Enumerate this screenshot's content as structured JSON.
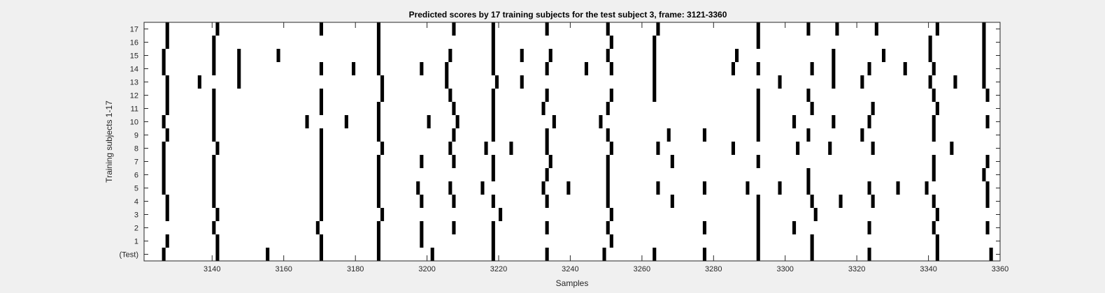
{
  "chart_data": {
    "type": "raster",
    "title": "Predicted scores by 17 training subjects for the test subject 3, frame: 3121-3360",
    "xlabel": "Samples",
    "ylabel": "Training subjects 1-17",
    "xlim": [
      3121,
      3360
    ],
    "xticks": [
      3140,
      3160,
      3180,
      3200,
      3220,
      3240,
      3260,
      3280,
      3300,
      3320,
      3340,
      3360
    ],
    "bar_width": 1,
    "grid": false,
    "series": [
      {
        "label": "(Test)",
        "events": [
          3126,
          3141,
          3155,
          3170,
          3186,
          3201,
          3218,
          3233,
          3249,
          3263,
          3277,
          3292,
          3307,
          3323,
          3342,
          3357
        ]
      },
      {
        "label": "1",
        "events": [
          3127,
          3141,
          3170,
          3186,
          3198,
          3218,
          3251,
          3292,
          3307,
          3342
        ]
      },
      {
        "label": "2",
        "events": [
          3140,
          3169,
          3186,
          3198,
          3207,
          3218,
          3233,
          3250,
          3277,
          3292,
          3302,
          3323,
          3341,
          3356
        ]
      },
      {
        "label": "3",
        "events": [
          3127,
          3141,
          3170,
          3187,
          3220,
          3251,
          3292,
          3308,
          3342
        ]
      },
      {
        "label": "4",
        "events": [
          3127,
          3140,
          3170,
          3186,
          3198,
          3207,
          3218,
          3233,
          3250,
          3268,
          3292,
          3307,
          3315,
          3324,
          3341,
          3356
        ]
      },
      {
        "label": "5",
        "events": [
          3126,
          3140,
          3170,
          3186,
          3197,
          3206,
          3215,
          3232,
          3239,
          3250,
          3264,
          3277,
          3289,
          3298,
          3306,
          3323,
          3331,
          3339,
          3356
        ]
      },
      {
        "label": "6",
        "events": [
          3126,
          3140,
          3170,
          3186,
          3218,
          3233,
          3250,
          3306,
          3341,
          3355
        ]
      },
      {
        "label": "7",
        "events": [
          3126,
          3140,
          3170,
          3186,
          3198,
          3207,
          3218,
          3234,
          3250,
          3268,
          3292,
          3341,
          3356
        ]
      },
      {
        "label": "8",
        "events": [
          3126,
          3141,
          3170,
          3187,
          3206,
          3216,
          3223,
          3233,
          3251,
          3264,
          3285,
          3303,
          3312,
          3324,
          3346
        ]
      },
      {
        "label": "9",
        "events": [
          3127,
          3140,
          3170,
          3186,
          3207,
          3218,
          3233,
          3250,
          3267,
          3277,
          3292,
          3306,
          3321,
          3341
        ]
      },
      {
        "label": "10",
        "events": [
          3126,
          3140,
          3166,
          3177,
          3186,
          3200,
          3208,
          3218,
          3235,
          3248,
          3292,
          3302,
          3313,
          3323,
          3341,
          3356
        ]
      },
      {
        "label": "11",
        "events": [
          3127,
          3140,
          3170,
          3186,
          3207,
          3218,
          3232,
          3250,
          3292,
          3307,
          3324,
          3342
        ]
      },
      {
        "label": "12",
        "events": [
          3127,
          3140,
          3170,
          3187,
          3206,
          3218,
          3233,
          3251,
          3263,
          3292,
          3306,
          3341,
          3356
        ]
      },
      {
        "label": "13",
        "events": [
          3127,
          3136,
          3147,
          3187,
          3205,
          3219,
          3226,
          3263,
          3298,
          3313,
          3321,
          3340,
          3347,
          3355
        ]
      },
      {
        "label": "14",
        "events": [
          3126,
          3140,
          3147,
          3170,
          3179,
          3186,
          3198,
          3205,
          3218,
          3233,
          3244,
          3251,
          3263,
          3285,
          3292,
          3307,
          3313,
          3323,
          3333,
          3341,
          3355
        ]
      },
      {
        "label": "15",
        "events": [
          3126,
          3140,
          3147,
          3158,
          3186,
          3206,
          3218,
          3226,
          3234,
          3250,
          3263,
          3286,
          3313,
          3327,
          3340,
          3355
        ]
      },
      {
        "label": "16",
        "events": [
          3127,
          3140,
          3186,
          3218,
          3251,
          3263,
          3292,
          3340,
          3355
        ]
      },
      {
        "label": "17",
        "events": [
          3127,
          3141,
          3170,
          3186,
          3207,
          3218,
          3233,
          3250,
          3264,
          3292,
          3306,
          3314,
          3325,
          3342,
          3355
        ]
      }
    ]
  }
}
